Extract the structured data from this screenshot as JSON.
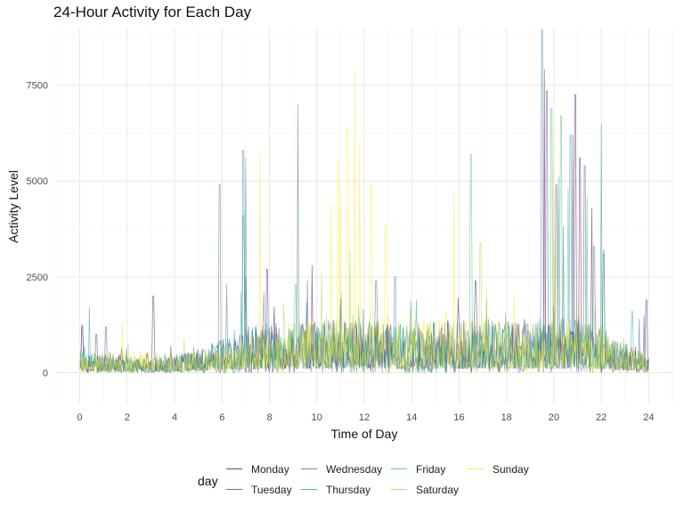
{
  "chart_data": {
    "type": "line",
    "title": "24-Hour Activity for Each Day",
    "xlabel": "Time of Day",
    "ylabel": "Activity Level",
    "xlim": [
      -1,
      25
    ],
    "ylim": [
      -800,
      9000
    ],
    "x_ticks": [
      0,
      2,
      4,
      6,
      8,
      10,
      12,
      14,
      16,
      18,
      20,
      22,
      24
    ],
    "y_ticks": [
      0,
      2500,
      5000,
      7500
    ],
    "y_tick_labels": [
      "0",
      "2500",
      "5000",
      "7500"
    ],
    "grid": true,
    "legend_title": "day",
    "legend_position": "bottom",
    "x_resolution_hours": 0.04,
    "series": [
      {
        "name": "Monday",
        "color": "#440154",
        "baseline": [
          [
            0,
            350
          ],
          [
            1,
            300
          ],
          [
            2,
            250
          ],
          [
            3,
            200
          ],
          [
            4,
            260
          ],
          [
            5,
            350
          ],
          [
            6,
            500
          ],
          [
            7,
            650
          ],
          [
            8,
            700
          ],
          [
            9,
            680
          ],
          [
            10,
            720
          ],
          [
            11,
            780
          ],
          [
            12,
            760
          ],
          [
            13,
            700
          ],
          [
            14,
            680
          ],
          [
            15,
            720
          ],
          [
            16,
            760
          ],
          [
            17,
            780
          ],
          [
            18,
            720
          ],
          [
            19,
            700
          ],
          [
            20,
            750
          ],
          [
            21,
            780
          ],
          [
            22,
            650
          ],
          [
            23,
            450
          ],
          [
            24,
            280
          ]
        ],
        "peaks": [
          [
            0.1,
            1200
          ],
          [
            0.7,
            1000
          ],
          [
            3.1,
            2000
          ],
          [
            7.9,
            2700
          ],
          [
            9.8,
            2800
          ],
          [
            16.7,
            2400
          ],
          [
            19.6,
            7900
          ],
          [
            20.9,
            7250
          ],
          [
            21.1,
            5600
          ],
          [
            21.6,
            4300
          ],
          [
            23.9,
            1900
          ]
        ]
      },
      {
        "name": "Tuesday",
        "color": "#443A83",
        "baseline": [
          [
            0,
            300
          ],
          [
            1,
            260
          ],
          [
            2,
            220
          ],
          [
            3,
            180
          ],
          [
            4,
            240
          ],
          [
            5,
            330
          ],
          [
            6,
            480
          ],
          [
            7,
            640
          ],
          [
            8,
            700
          ],
          [
            9,
            690
          ],
          [
            10,
            720
          ],
          [
            11,
            760
          ],
          [
            12,
            740
          ],
          [
            13,
            700
          ],
          [
            14,
            690
          ],
          [
            15,
            720
          ],
          [
            16,
            740
          ],
          [
            17,
            770
          ],
          [
            18,
            730
          ],
          [
            19,
            700
          ],
          [
            20,
            760
          ],
          [
            21,
            780
          ],
          [
            22,
            640
          ],
          [
            23,
            430
          ],
          [
            24,
            260
          ]
        ],
        "peaks": [
          [
            1.1,
            1200
          ],
          [
            7.0,
            2500
          ],
          [
            9.6,
            2400
          ],
          [
            12.5,
            2400
          ],
          [
            19.7,
            7350
          ],
          [
            20.1,
            4900
          ],
          [
            20.8,
            6200
          ],
          [
            21.3,
            5400
          ],
          [
            22.1,
            3100
          ],
          [
            23.8,
            1500
          ]
        ]
      },
      {
        "name": "Wednesday",
        "color": "#31688E",
        "baseline": [
          [
            0,
            320
          ],
          [
            1,
            280
          ],
          [
            2,
            240
          ],
          [
            3,
            210
          ],
          [
            4,
            260
          ],
          [
            5,
            360
          ],
          [
            6,
            520
          ],
          [
            7,
            680
          ],
          [
            8,
            720
          ],
          [
            9,
            700
          ],
          [
            10,
            740
          ],
          [
            11,
            770
          ],
          [
            12,
            750
          ],
          [
            13,
            720
          ],
          [
            14,
            700
          ],
          [
            15,
            730
          ],
          [
            16,
            750
          ],
          [
            17,
            770
          ],
          [
            18,
            740
          ],
          [
            19,
            720
          ],
          [
            20,
            760
          ],
          [
            21,
            790
          ],
          [
            22,
            660
          ],
          [
            23,
            450
          ],
          [
            24,
            270
          ]
        ],
        "peaks": [
          [
            0.1,
            1250
          ],
          [
            5.9,
            4900
          ],
          [
            6.2,
            2300
          ],
          [
            6.9,
            5800
          ],
          [
            9.2,
            7000
          ],
          [
            13.3,
            2500
          ],
          [
            19.5,
            8950
          ],
          [
            20.4,
            3800
          ],
          [
            21.7,
            3300
          ],
          [
            23.6,
            1400
          ]
        ]
      },
      {
        "name": "Thursday",
        "color": "#21908C",
        "baseline": [
          [
            0,
            330
          ],
          [
            1,
            270
          ],
          [
            2,
            230
          ],
          [
            3,
            200
          ],
          [
            4,
            250
          ],
          [
            5,
            340
          ],
          [
            6,
            500
          ],
          [
            7,
            660
          ],
          [
            8,
            700
          ],
          [
            9,
            690
          ],
          [
            10,
            730
          ],
          [
            11,
            760
          ],
          [
            12,
            740
          ],
          [
            13,
            710
          ],
          [
            14,
            690
          ],
          [
            15,
            720
          ],
          [
            16,
            740
          ],
          [
            17,
            760
          ],
          [
            18,
            730
          ],
          [
            19,
            710
          ],
          [
            20,
            750
          ],
          [
            21,
            780
          ],
          [
            22,
            650
          ],
          [
            23,
            440
          ],
          [
            24,
            260
          ]
        ],
        "peaks": [
          [
            0.4,
            1700
          ],
          [
            6.9,
            4100
          ],
          [
            7.0,
            5600
          ],
          [
            14.2,
            1900
          ],
          [
            20.2,
            5100
          ],
          [
            20.7,
            6200
          ],
          [
            22.0,
            6500
          ],
          [
            23.3,
            1600
          ]
        ]
      },
      {
        "name": "Friday",
        "color": "#35B779",
        "baseline": [
          [
            0,
            300
          ],
          [
            1,
            250
          ],
          [
            2,
            210
          ],
          [
            3,
            190
          ],
          [
            4,
            240
          ],
          [
            5,
            330
          ],
          [
            6,
            490
          ],
          [
            7,
            650
          ],
          [
            8,
            690
          ],
          [
            9,
            680
          ],
          [
            10,
            720
          ],
          [
            11,
            750
          ],
          [
            12,
            730
          ],
          [
            13,
            700
          ],
          [
            14,
            680
          ],
          [
            15,
            710
          ],
          [
            16,
            730
          ],
          [
            17,
            750
          ],
          [
            18,
            720
          ],
          [
            19,
            700
          ],
          [
            20,
            760
          ],
          [
            21,
            800
          ],
          [
            22,
            670
          ],
          [
            23,
            450
          ],
          [
            24,
            260
          ]
        ],
        "peaks": [
          [
            6.8,
            2100
          ],
          [
            9.1,
            2300
          ],
          [
            16.5,
            5700
          ],
          [
            19.9,
            6900
          ],
          [
            20.3,
            6700
          ],
          [
            20.6,
            4800
          ],
          [
            21.4,
            4600
          ],
          [
            22.1,
            3200
          ]
        ]
      },
      {
        "name": "Saturday",
        "color": "#A8D236",
        "baseline": [
          [
            0,
            260
          ],
          [
            1,
            300
          ],
          [
            2,
            320
          ],
          [
            3,
            280
          ],
          [
            4,
            260
          ],
          [
            5,
            300
          ],
          [
            6,
            380
          ],
          [
            7,
            520
          ],
          [
            8,
            640
          ],
          [
            9,
            720
          ],
          [
            10,
            800
          ],
          [
            11,
            850
          ],
          [
            12,
            820
          ],
          [
            13,
            780
          ],
          [
            14,
            740
          ],
          [
            15,
            740
          ],
          [
            16,
            760
          ],
          [
            17,
            780
          ],
          [
            18,
            740
          ],
          [
            19,
            700
          ],
          [
            20,
            740
          ],
          [
            21,
            760
          ],
          [
            22,
            640
          ],
          [
            23,
            430
          ],
          [
            24,
            260
          ]
        ],
        "peaks": [
          [
            4.4,
            900
          ],
          [
            8.6,
            1800
          ],
          [
            10.2,
            2600
          ],
          [
            11.4,
            3200
          ],
          [
            16.9,
            3400
          ],
          [
            20.0,
            3500
          ]
        ]
      },
      {
        "name": "Sunday",
        "color": "#FDE725",
        "baseline": [
          [
            0,
            250
          ],
          [
            1,
            300
          ],
          [
            2,
            330
          ],
          [
            3,
            300
          ],
          [
            4,
            280
          ],
          [
            5,
            300
          ],
          [
            6,
            350
          ],
          [
            7,
            450
          ],
          [
            8,
            560
          ],
          [
            9,
            680
          ],
          [
            10,
            820
          ],
          [
            11,
            900
          ],
          [
            12,
            860
          ],
          [
            13,
            800
          ],
          [
            14,
            760
          ],
          [
            15,
            740
          ],
          [
            16,
            760
          ],
          [
            17,
            780
          ],
          [
            18,
            740
          ],
          [
            19,
            700
          ],
          [
            20,
            720
          ],
          [
            21,
            740
          ],
          [
            22,
            620
          ],
          [
            23,
            420
          ],
          [
            24,
            250
          ]
        ],
        "peaks": [
          [
            1.8,
            1300
          ],
          [
            7.6,
            5800
          ],
          [
            10.6,
            4400
          ],
          [
            10.9,
            5500
          ],
          [
            11.0,
            4800
          ],
          [
            11.3,
            6400
          ],
          [
            11.6,
            7900
          ],
          [
            11.8,
            6000
          ],
          [
            12.3,
            4900
          ],
          [
            12.9,
            3900
          ],
          [
            15.8,
            4800
          ],
          [
            20.0,
            6500
          ]
        ]
      }
    ]
  }
}
